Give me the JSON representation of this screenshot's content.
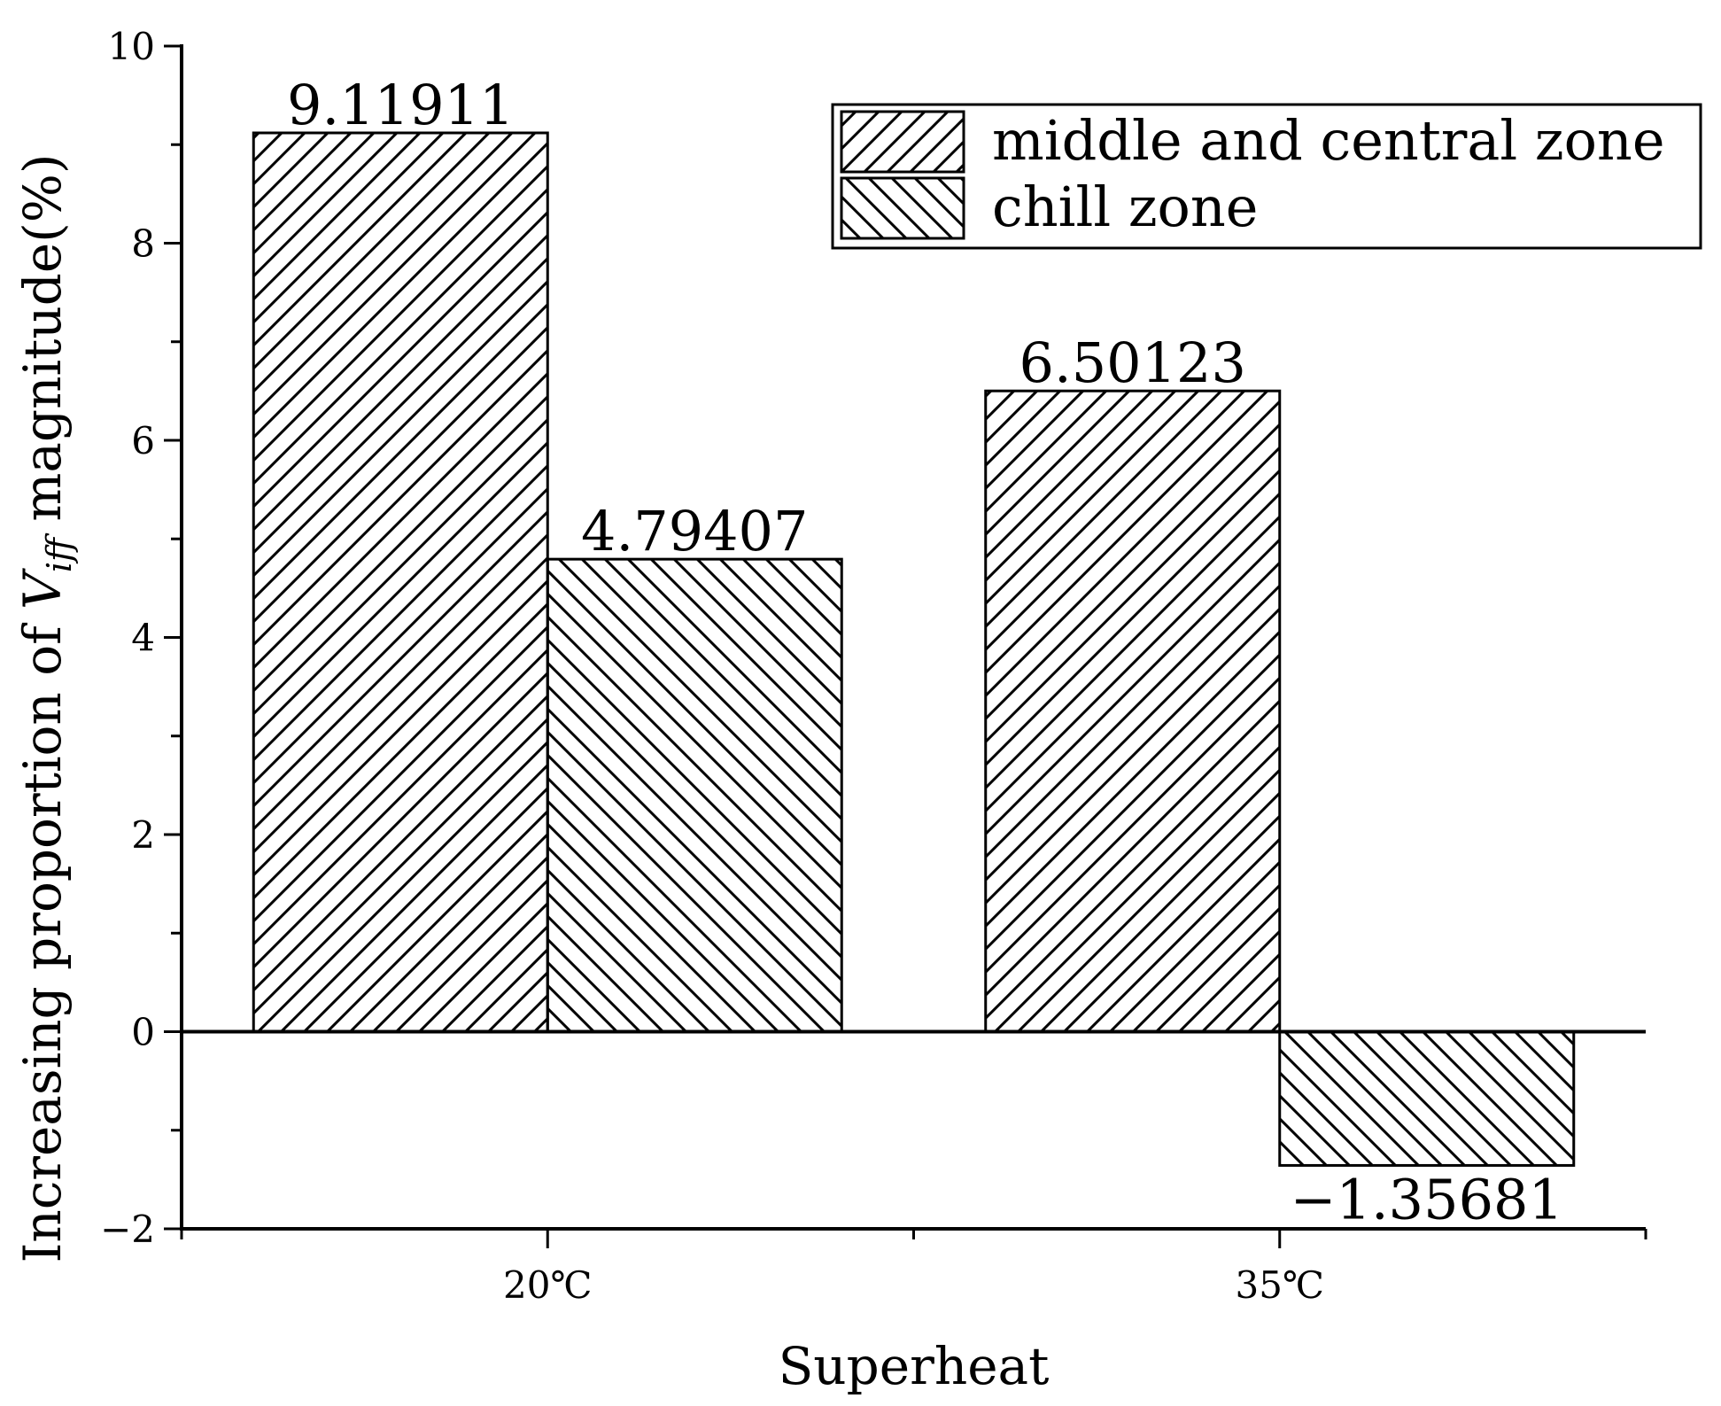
{
  "chart_data": {
    "type": "bar",
    "title": "",
    "xlabel": "Superheat",
    "ylabel": {
      "prefix": "Increasing proportion of ",
      "symbol": "V",
      "subscript": "iff",
      "suffix": " magnitude(%)"
    },
    "categories": [
      "20℃",
      "35℃"
    ],
    "ylim": [
      -2,
      10
    ],
    "y_ticks": [
      "−2",
      "0",
      "2",
      "4",
      "6",
      "8",
      "10"
    ],
    "grid": false,
    "legend_position": "top-right",
    "series": [
      {
        "name": "middle and central zone",
        "values": [
          9.11911,
          6.50123
        ],
        "labels": [
          "9.11911",
          "6.50123"
        ],
        "pattern": "hatch-forward"
      },
      {
        "name": "chill zone",
        "values": [
          4.79407,
          -1.35681
        ],
        "labels": [
          "4.79407",
          "−1.35681"
        ],
        "pattern": "hatch-backward"
      }
    ],
    "colors": {
      "stroke": "#000000",
      "background": "#ffffff"
    }
  }
}
